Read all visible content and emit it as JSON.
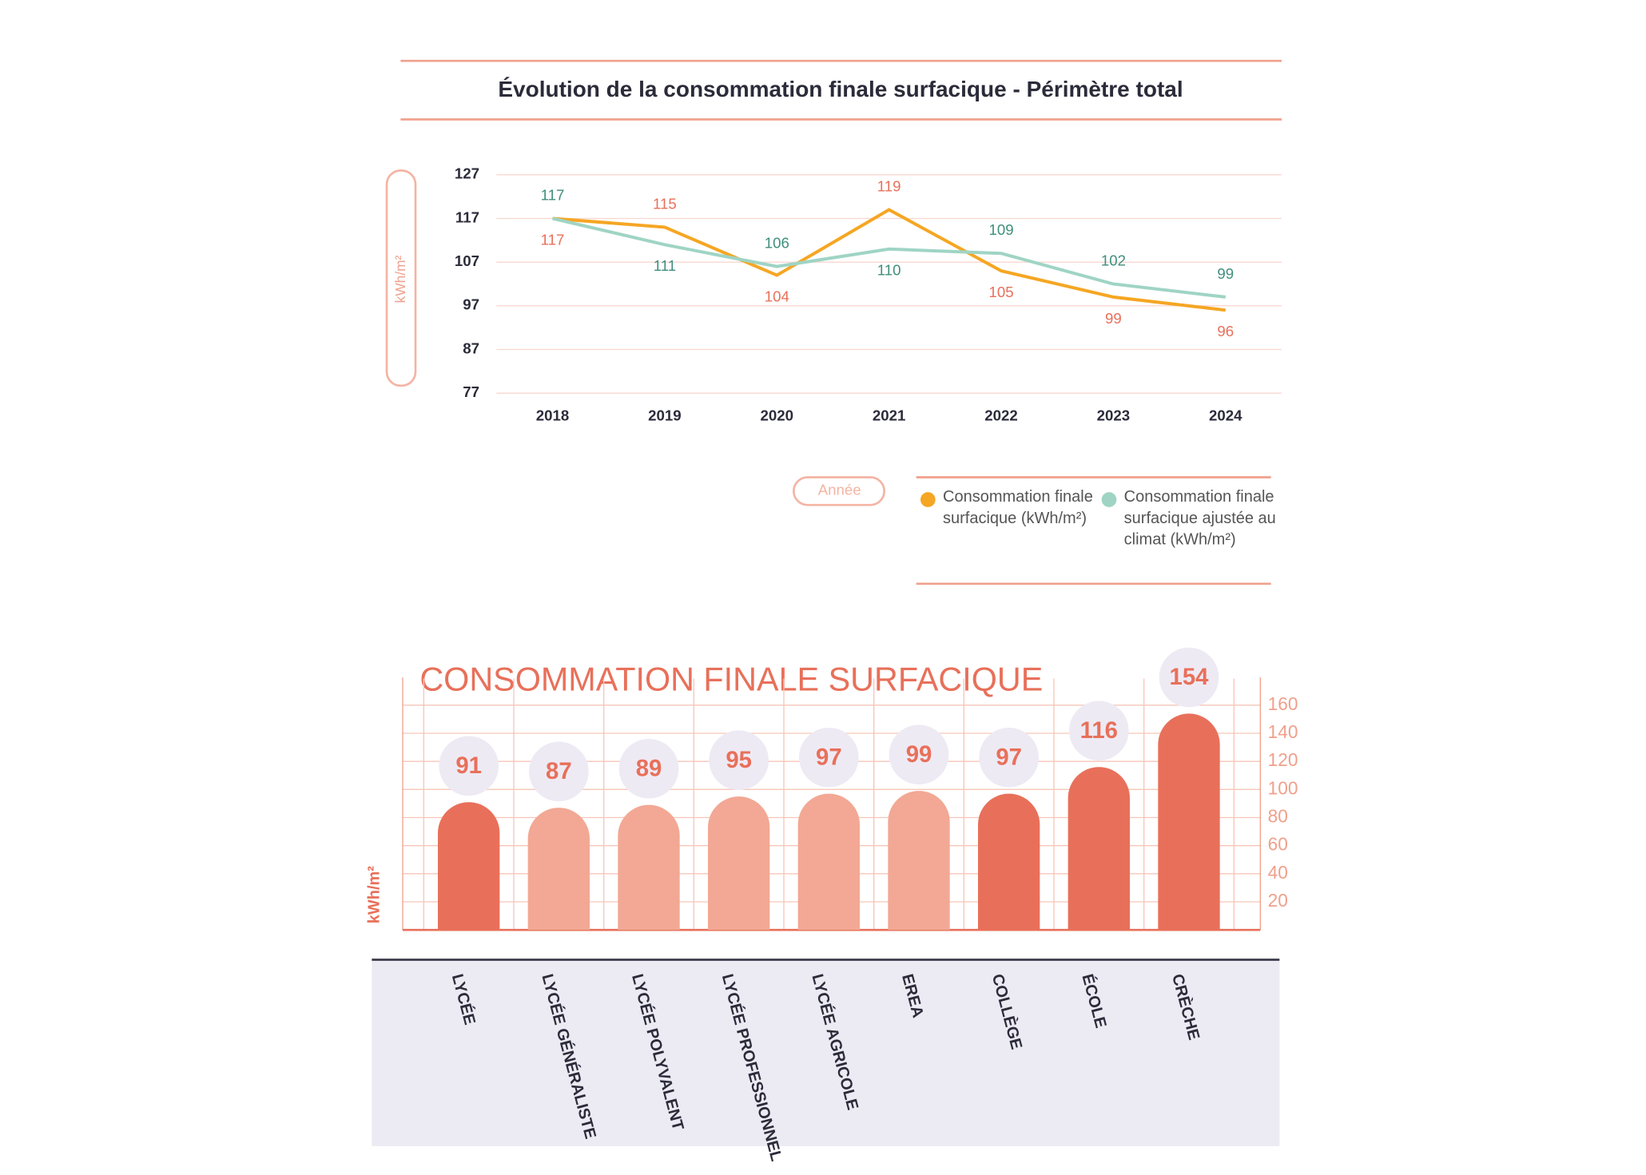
{
  "chart_data": [
    {
      "type": "line",
      "title": "Évolution de la consommation finale surfacique - Périmètre total",
      "y_label": "kWh/m²",
      "x_label": "Année",
      "categories": [
        "2018",
        "2019",
        "2020",
        "2021",
        "2022",
        "2023",
        "2024"
      ],
      "series": [
        {
          "name": "Consommation finale surfacique (kWh/m²)",
          "color": "#f5a623",
          "label_color": "#e8705a",
          "values": [
            117,
            115,
            104,
            119,
            105,
            99,
            96
          ]
        },
        {
          "name": "Consommation finale surfacique ajustée au climat (kWh/m²)",
          "color": "#9fd4c4",
          "label_color": "#3f8f7d",
          "values": [
            117,
            111,
            106,
            110,
            109,
            102,
            99
          ]
        }
      ],
      "ylim": [
        77,
        127
      ],
      "yticks": [
        77,
        87,
        97,
        107,
        117,
        127
      ],
      "grid": true
    },
    {
      "type": "bar",
      "title": "CONSOMMATION FINALE SURFACIQUE",
      "y_label": "kWh/m²",
      "categories": [
        "LYCÉE",
        "LYCÉE GÉNÉRALISTE",
        "LYCÉE POLYVALENT",
        "LYCÉE PROFESSIONNEL",
        "LYCÉE AGRICOLE",
        "EREA",
        "COLLÈGE",
        "ÉCOLE",
        "CRÈCHE"
      ],
      "values": [
        91,
        87,
        89,
        95,
        97,
        99,
        97,
        116,
        154
      ],
      "colors": [
        "#e8705a",
        "#f2a894",
        "#f2a894",
        "#f2a894",
        "#f2a894",
        "#f2a894",
        "#e8705a",
        "#e8705a",
        "#e8705a"
      ],
      "ylim": [
        0,
        160
      ],
      "yticks": [
        20,
        40,
        60,
        80,
        100,
        120,
        140,
        160
      ],
      "grid": true
    }
  ]
}
